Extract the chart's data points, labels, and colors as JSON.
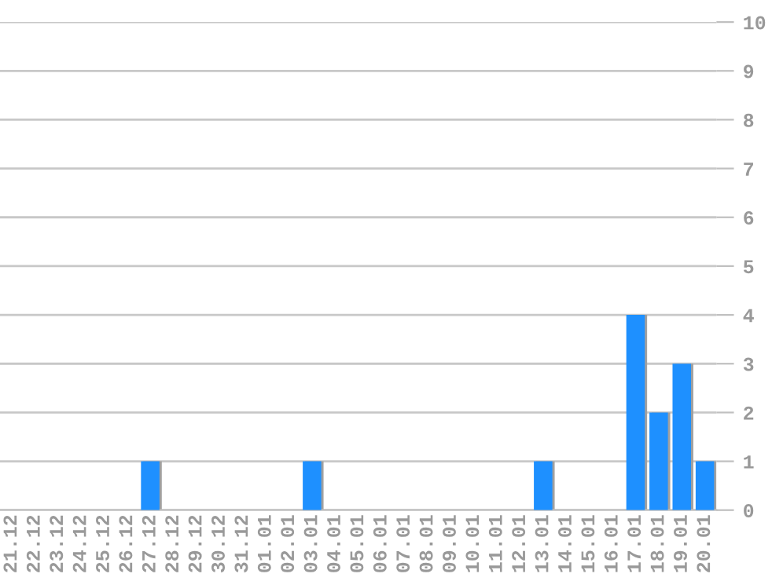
{
  "chart_data": {
    "type": "bar",
    "categories": [
      "21.12",
      "22.12",
      "23.12",
      "24.12",
      "25.12",
      "26.12",
      "27.12",
      "28.12",
      "29.12",
      "30.12",
      "31.12",
      "01.01",
      "02.01",
      "03.01",
      "04.01",
      "05.01",
      "06.01",
      "07.01",
      "08.01",
      "09.01",
      "10.01",
      "11.01",
      "12.01",
      "13.01",
      "14.01",
      "15.01",
      "16.01",
      "17.01",
      "18.01",
      "19.01",
      "20.01"
    ],
    "values": [
      0,
      0,
      0,
      0,
      0,
      0,
      1,
      0,
      0,
      0,
      0,
      0,
      0,
      1,
      0,
      0,
      0,
      0,
      0,
      0,
      0,
      0,
      0,
      1,
      0,
      0,
      0,
      4,
      2,
      3,
      1
    ],
    "color": "#1e90ff",
    "ylim": [
      0,
      10
    ],
    "yticks": [
      0,
      1,
      2,
      3,
      4,
      5,
      6,
      7,
      8,
      9,
      10
    ],
    "grid": "y"
  }
}
